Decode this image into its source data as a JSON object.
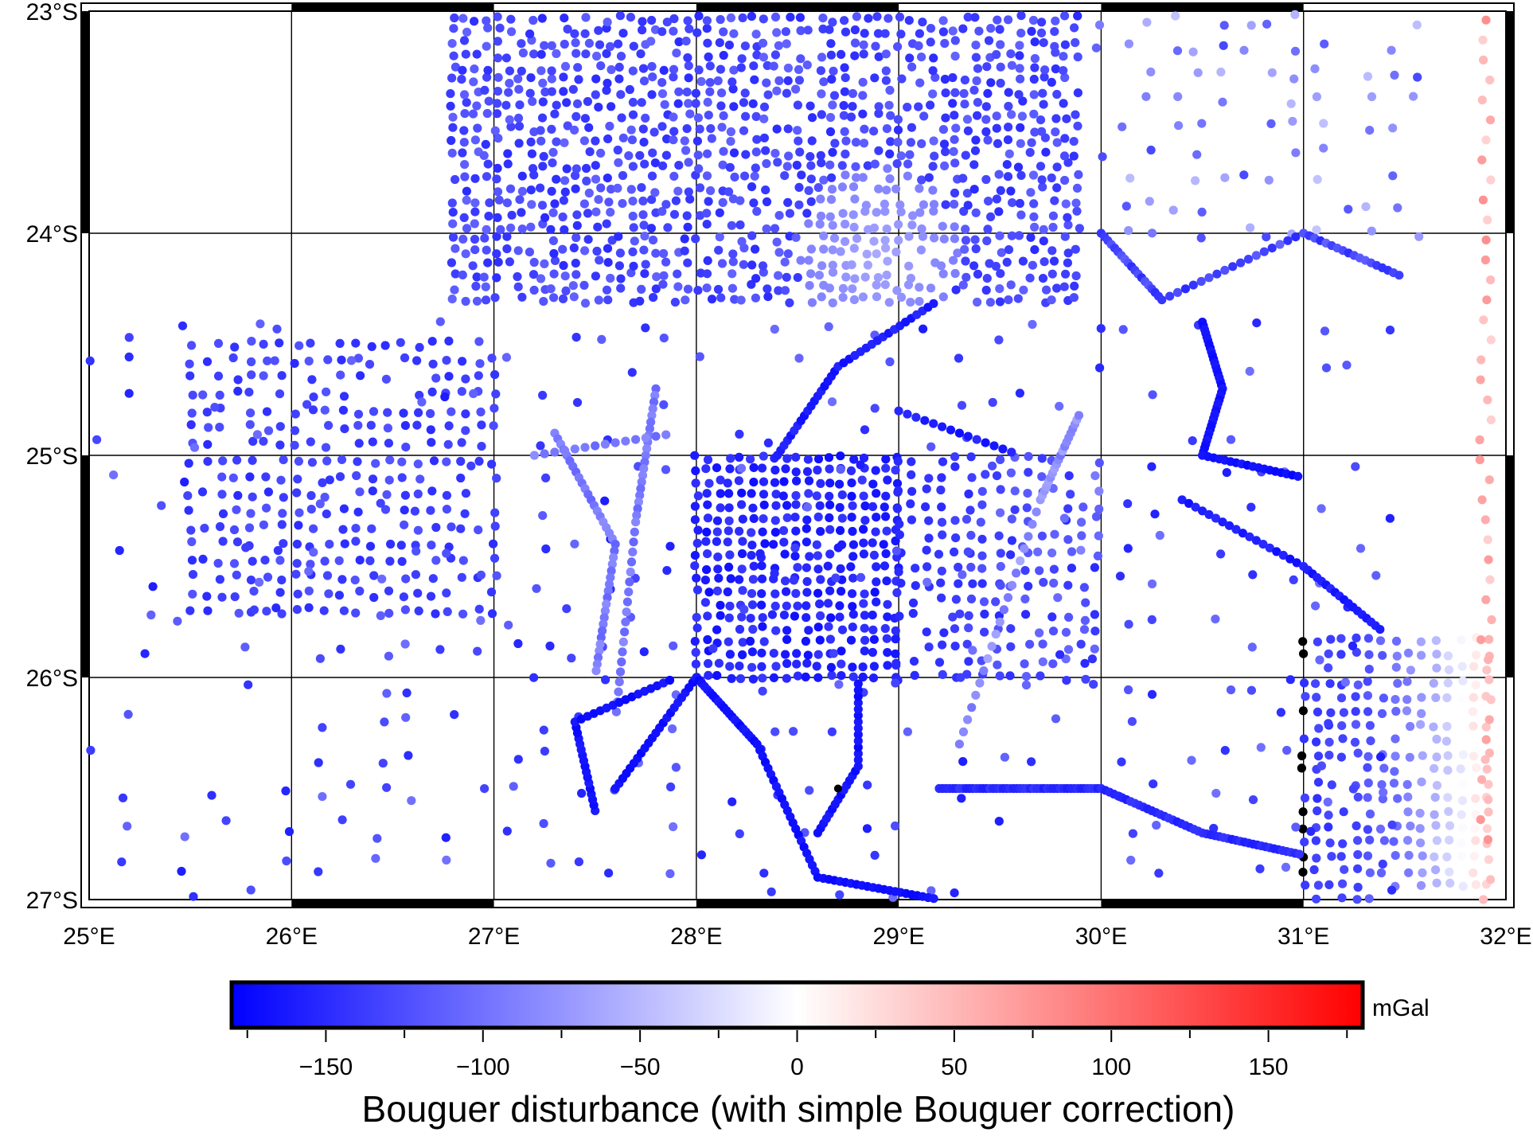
{
  "map": {
    "lon_range": [
      25,
      32
    ],
    "lat_range": [
      -27,
      -23
    ],
    "lon_ticks": [
      25,
      26,
      27,
      28,
      29,
      30,
      31,
      32
    ],
    "lat_ticks": [
      -23,
      -24,
      -25,
      -26,
      -27
    ],
    "lon_labels": [
      "25°E",
      "26°E",
      "27°E",
      "28°E",
      "29°E",
      "30°E",
      "31°E",
      "32°E"
    ],
    "lat_labels": [
      "23°S",
      "24°S",
      "25°S",
      "26°S",
      "27°S"
    ],
    "grid": true,
    "frame_style": "plain-fancy",
    "point_colormap": "blue-white-red (polar)",
    "marker": {
      "label": "single black station point",
      "lon": 28.7,
      "lat": -26.5
    }
  },
  "colorbar": {
    "range": [
      -180,
      180
    ],
    "tick_values": [
      -150,
      -100,
      -50,
      0,
      50,
      100,
      150
    ],
    "tick_labels": [
      "−150",
      "−100",
      "−50",
      "0",
      "50",
      "100",
      "150"
    ],
    "unit": "mGal",
    "title": "Bouguer disturbance (with simple Bouguer correction)",
    "colors": {
      "low": "#0000ff",
      "mid": "#ffffff",
      "high": "#ff0000"
    }
  },
  "chart_data": {
    "type": "scatter",
    "title": "",
    "xlabel": "",
    "ylabel": "",
    "xlim": [
      25,
      32
    ],
    "ylim": [
      -27,
      -23
    ],
    "legend": "colorbar-bottom",
    "value_label": "Bouguer disturbance (with simple Bouguer correction)",
    "value_unit": "mGal",
    "clusters": [
      {
        "name": "",
        "lon": [
          27.0,
          29.8
        ],
        "lat": [
          -24.3,
          -23.0
        ],
        "value_range": [
          -160,
          -60
        ],
        "dense": true
      },
      {
        "name": "",
        "lon": [
          25.5,
          27.0
        ],
        "lat": [
          -25.7,
          -24.5
        ],
        "value_range": [
          -150,
          -120
        ],
        "dense": true
      },
      {
        "name": "",
        "lon": [
          28.0,
          29.0
        ],
        "lat": [
          -26.0,
          -25.0
        ],
        "value_range": [
          -170,
          -140
        ],
        "dense": true
      },
      {
        "name": "",
        "lon": [
          29.0,
          30.0
        ],
        "lat": [
          -26.0,
          -25.0
        ],
        "value_range": [
          -160,
          -70
        ],
        "dense": true
      },
      {
        "name": "",
        "lon": [
          31.0,
          32.0
        ],
        "lat": [
          -27.0,
          -25.8
        ],
        "value_range": [
          -140,
          60
        ],
        "dense": true
      },
      {
        "name": "",
        "lon": [
          31.8,
          32.0
        ],
        "lat": [
          -27.0,
          -23.0
        ],
        "value_range": [
          20,
          80
        ],
        "dense": false
      }
    ]
  }
}
